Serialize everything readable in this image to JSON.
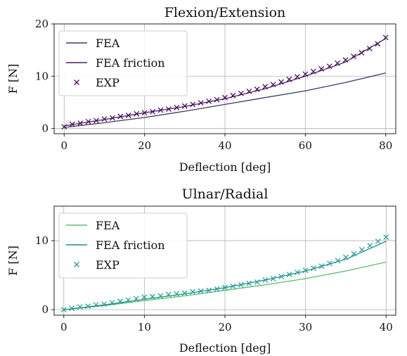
{
  "chart_data": [
    {
      "type": "line",
      "title": "Flexion/Extension",
      "xlabel": "Deflection [deg]",
      "ylabel": "F [N]",
      "xlim": [
        -2.5,
        82.5
      ],
      "ylim": [
        -1,
        20
      ],
      "xticks": [
        "0",
        "20",
        "40",
        "60",
        "80"
      ],
      "yticks": [
        "0",
        "10",
        "20"
      ],
      "xtick_values": [
        0,
        20,
        40,
        60,
        80
      ],
      "ytick_values": [
        0,
        10,
        20
      ],
      "grid": true,
      "legend_position": "upper-left",
      "colors": {
        "fea": "#3a3a6e",
        "fea_friction": "#4a1f6b",
        "exp": "#4a1060"
      },
      "series": [
        {
          "name": "FEA",
          "kind": "line",
          "x": [
            0,
            10,
            20,
            30,
            40,
            50,
            60,
            70,
            80
          ],
          "values": [
            0.2,
            1.1,
            2.1,
            3.3,
            4.6,
            5.9,
            7.2,
            8.8,
            10.6
          ]
        },
        {
          "name": "FEA friction",
          "kind": "line",
          "x": [
            0,
            10,
            20,
            30,
            40,
            50,
            60,
            70,
            80
          ],
          "values": [
            0.5,
            1.7,
            3.0,
            4.2,
            5.7,
            7.6,
            10.0,
            12.7,
            17.2
          ]
        },
        {
          "name": "EXP",
          "kind": "scatter",
          "x": [
            0,
            2,
            4,
            6,
            8,
            10,
            12,
            14,
            16,
            18,
            20,
            22,
            24,
            26,
            28,
            30,
            32,
            34,
            36,
            38,
            40,
            42,
            44,
            46,
            48,
            50,
            52,
            54,
            56,
            58,
            60,
            62,
            64,
            66,
            68,
            70,
            72,
            74,
            76,
            78,
            80
          ],
          "values": [
            0.3,
            0.8,
            1.0,
            1.3,
            1.5,
            1.8,
            2.0,
            2.3,
            2.5,
            2.8,
            3.0,
            3.2,
            3.5,
            3.7,
            4.0,
            4.3,
            4.6,
            4.9,
            5.2,
            5.5,
            5.9,
            6.3,
            6.7,
            7.1,
            7.5,
            8.0,
            8.4,
            8.9,
            9.4,
            9.9,
            10.4,
            10.9,
            11.4,
            11.9,
            12.5,
            13.1,
            13.8,
            14.5,
            15.3,
            16.2,
            17.4
          ]
        }
      ]
    },
    {
      "type": "line",
      "title": "Ulnar/Radial",
      "xlabel": "Deflection [deg]",
      "ylabel": "F [N]",
      "xlim": [
        -1.2,
        41.2
      ],
      "ylim": [
        -0.8,
        15
      ],
      "xticks": [
        "0",
        "10",
        "20",
        "30",
        "40"
      ],
      "yticks": [
        "0",
        "10"
      ],
      "xtick_values": [
        0,
        10,
        20,
        30,
        40
      ],
      "ytick_values": [
        0,
        10
      ],
      "grid": true,
      "legend_position": "upper-left",
      "colors": {
        "fea": "#58c26b",
        "fea_friction": "#1f8f8a",
        "exp": "#2aa09a"
      },
      "series": [
        {
          "name": "FEA",
          "kind": "line",
          "x": [
            0,
            5,
            10,
            15,
            20,
            25,
            30,
            35,
            40
          ],
          "values": [
            0.0,
            0.6,
            1.3,
            2.0,
            2.8,
            3.6,
            4.5,
            5.6,
            6.9
          ]
        },
        {
          "name": "FEA friction",
          "kind": "line",
          "x": [
            0,
            5,
            10,
            15,
            20,
            25,
            30,
            35,
            40
          ],
          "values": [
            0.0,
            0.7,
            1.5,
            2.3,
            3.2,
            4.3,
            5.6,
            7.3,
            9.9
          ]
        },
        {
          "name": "EXP",
          "kind": "scatter",
          "x": [
            0,
            1,
            2,
            3,
            4,
            5,
            6,
            7,
            8,
            9,
            10,
            11,
            12,
            13,
            14,
            15,
            16,
            17,
            18,
            19,
            20,
            21,
            22,
            23,
            24,
            25,
            26,
            27,
            28,
            29,
            30,
            31,
            32,
            33,
            34,
            35,
            36,
            37,
            38,
            39,
            40
          ],
          "values": [
            0.0,
            0.2,
            0.4,
            0.5,
            0.7,
            0.8,
            1.0,
            1.2,
            1.4,
            1.6,
            1.8,
            1.9,
            2.0,
            2.2,
            2.3,
            2.4,
            2.6,
            2.7,
            2.8,
            3.0,
            3.2,
            3.4,
            3.6,
            3.8,
            4.0,
            4.3,
            4.5,
            4.8,
            5.1,
            5.4,
            5.7,
            6.0,
            6.3,
            6.7,
            7.1,
            7.6,
            8.1,
            8.7,
            9.3,
            9.9,
            10.5
          ]
        }
      ]
    }
  ]
}
